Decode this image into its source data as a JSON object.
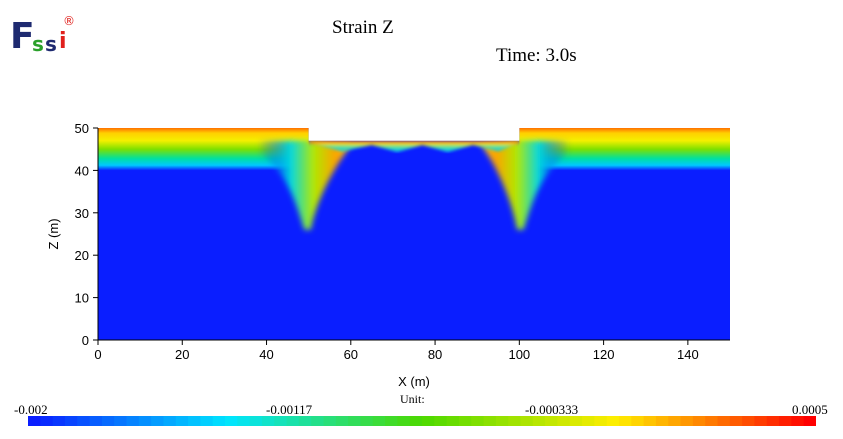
{
  "logo": {
    "text": "Fssi",
    "registered": "®"
  },
  "header": {
    "title": "Strain Z",
    "time": "Time: 3.0s"
  },
  "chart_data": {
    "type": "heatmap",
    "title": "Strain Z",
    "xlabel": "X (m)",
    "ylabel": "Z (m)",
    "xlim": [
      0,
      150
    ],
    "ylim": [
      0,
      50
    ],
    "xticks": [
      0,
      20,
      40,
      60,
      80,
      100,
      120,
      140
    ],
    "yticks": [
      0,
      10,
      20,
      30,
      40,
      50
    ],
    "colorscale": {
      "min": -0.002,
      "max": 0.0005,
      "colors": [
        "#0a1eff",
        "#00e5ff",
        "#4cd900",
        "#ffee00",
        "#ff0000"
      ]
    },
    "colorbar": {
      "unit_label": "Unit:",
      "tick_labels": [
        "-0.002",
        "-0.00117",
        "-0.000333",
        "0.0005"
      ]
    },
    "domain_shape": {
      "top_surface_left": {
        "x": [
          0,
          50
        ],
        "z": 50
      },
      "excavation": {
        "x": [
          50,
          100
        ],
        "z": 47
      },
      "top_surface_right": {
        "x": [
          100,
          150
        ],
        "z": 50
      },
      "wall_toes": [
        {
          "x": 49,
          "z": 26
        },
        {
          "x": 101,
          "z": 26
        }
      ]
    },
    "field_description_values": {
      "background_strain": -0.002,
      "near_surface_band_strain": 0.0003,
      "surface_peak_strain": 0.0005
    }
  }
}
